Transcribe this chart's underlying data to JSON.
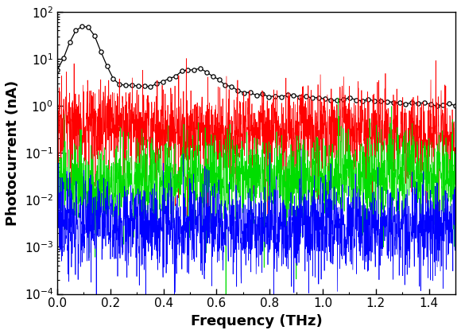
{
  "xlim": [
    0.0,
    1.5
  ],
  "ylim": [
    0.0001,
    100.0
  ],
  "xlabel": "Frequency (THz)",
  "ylabel": "Photocurrent (nA)",
  "xlabel_fontsize": 13,
  "ylabel_fontsize": 13,
  "tick_fontsize": 11,
  "background_color": "#ffffff",
  "signal_color": "#000000",
  "noise_colors": [
    "#ff0000",
    "#00dd00",
    "#0000ff"
  ],
  "noise_base_levels": [
    0.3,
    0.03,
    0.003
  ],
  "noise_std_log": [
    0.45,
    0.45,
    0.45
  ],
  "n_signal_points": 65,
  "n_noise_points": 2000,
  "seed": 7
}
